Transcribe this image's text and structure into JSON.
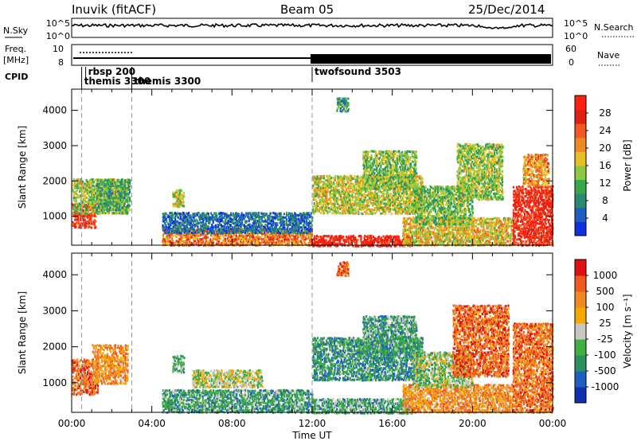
{
  "header": {
    "station": "Inuvik (fitACF)",
    "beam": "Beam 05",
    "date": "25/Dec/2014"
  },
  "strip": {
    "nsky_label": "N.Sky",
    "nsearch_label": "N.Search",
    "nsky_ticks": [
      "10^5",
      "10^0"
    ],
    "nsearch_ticks": [
      "10^5",
      "10^0"
    ],
    "freq_label_1": "Freq.",
    "freq_label_2": "[MHz]",
    "freq_ticks": [
      "10",
      "8"
    ],
    "nave_label": "Nave",
    "nave_ticks": [
      "60",
      "0"
    ],
    "cpid_label": "CPID",
    "cpid_programs": [
      {
        "name": "rbsp 200",
        "start_hour": 0.7,
        "row": 0
      },
      {
        "name": "themis 3300",
        "start_hour": 0.5,
        "row": 1
      },
      {
        "name": "themis 3300",
        "start_hour": 3.0,
        "row": 1
      },
      {
        "name": "twofsound 3503",
        "start_hour": 12.0,
        "row": 0
      }
    ]
  },
  "time_axis": {
    "label": "Time UT",
    "ticks": [
      "00:00",
      "04:00",
      "08:00",
      "12:00",
      "16:00",
      "20:00",
      "00:00"
    ],
    "range_hours": [
      0,
      24
    ]
  },
  "chart_data": [
    {
      "type": "heatmap",
      "name": "power",
      "ylabel": "Slant Range [km]",
      "yticks": [
        "1000",
        "2000",
        "3000",
        "4000"
      ],
      "ylim": [
        180,
        4600
      ],
      "xlim_hours": [
        0,
        24
      ],
      "colorbar": {
        "label": "Power [dB]",
        "ticks": [
          "4",
          "8",
          "12",
          "16",
          "20",
          "24",
          "28"
        ],
        "range": [
          0,
          30
        ],
        "colors": [
          "#1030e0",
          "#1f5fc4",
          "#2a8a70",
          "#36a84a",
          "#8cc840",
          "#e6c020",
          "#f08a20",
          "#f05a20",
          "#e02010",
          "#ff2010"
        ]
      },
      "echo_regions": [
        {
          "t0": 0.0,
          "t1": 1.2,
          "r0": 700,
          "r1": 1400,
          "level": 0.88
        },
        {
          "t0": 0.0,
          "t1": 2.8,
          "r0": 1100,
          "r1": 2100,
          "level": 0.45
        },
        {
          "t0": 1.2,
          "t1": 2.9,
          "r0": 1200,
          "r1": 2100,
          "level": 0.35
        },
        {
          "t0": 5.0,
          "t1": 5.6,
          "r0": 1300,
          "r1": 1800,
          "level": 0.5
        },
        {
          "t0": 4.5,
          "t1": 12.0,
          "r0": 200,
          "r1": 700,
          "level": 0.7
        },
        {
          "t0": 4.5,
          "t1": 12.0,
          "r0": 550,
          "r1": 1150,
          "level": 0.18
        },
        {
          "t0": 12.0,
          "t1": 17.0,
          "r0": 180,
          "r1": 500,
          "level": 0.93
        },
        {
          "t0": 12.0,
          "t1": 17.5,
          "r0": 1100,
          "r1": 2200,
          "level": 0.5
        },
        {
          "t0": 14.5,
          "t1": 17.2,
          "r0": 1800,
          "r1": 2900,
          "level": 0.42
        },
        {
          "t0": 13.2,
          "t1": 13.8,
          "r0": 4000,
          "r1": 4400,
          "level": 0.3
        },
        {
          "t0": 16.5,
          "t1": 22.0,
          "r0": 200,
          "r1": 1000,
          "level": 0.55
        },
        {
          "t0": 17.0,
          "t1": 20.0,
          "r0": 800,
          "r1": 1900,
          "level": 0.4
        },
        {
          "t0": 19.2,
          "t1": 21.5,
          "r0": 1500,
          "r1": 3100,
          "level": 0.45
        },
        {
          "t0": 22.0,
          "t1": 24.0,
          "r0": 200,
          "r1": 1900,
          "level": 0.9
        },
        {
          "t0": 22.5,
          "t1": 23.8,
          "r0": 1900,
          "r1": 2800,
          "level": 0.65
        }
      ]
    },
    {
      "type": "heatmap",
      "name": "velocity",
      "ylabel": "Slant Range [km]",
      "yticks": [
        "1000",
        "2000",
        "3000",
        "4000"
      ],
      "ylim": [
        180,
        4600
      ],
      "xlim_hours": [
        0,
        24
      ],
      "colorbar": {
        "label": "Velocity [m s⁻¹]",
        "ticks": [
          "1000",
          "500",
          "100",
          "25",
          "-25",
          "-100",
          "-500",
          "-1000"
        ],
        "range": [
          -1000,
          1000
        ],
        "colors": [
          "#e01010",
          "#f05a20",
          "#f08a20",
          "#f5a800",
          "#c8c8c0",
          "#40b040",
          "#2a9060",
          "#1f5fc4",
          "#1030b0"
        ]
      },
      "echo_regions": [
        {
          "t0": 0.0,
          "t1": 1.3,
          "r0": 700,
          "r1": 1700,
          "level": 0.2
        },
        {
          "t0": 1.0,
          "t1": 2.8,
          "r0": 1000,
          "r1": 2100,
          "level": 0.3
        },
        {
          "t0": 5.0,
          "t1": 5.6,
          "r0": 1300,
          "r1": 1800,
          "level": 0.62
        },
        {
          "t0": 4.5,
          "t1": 12.0,
          "r0": 200,
          "r1": 850,
          "level": 0.66
        },
        {
          "t0": 6.0,
          "t1": 9.5,
          "r0": 900,
          "r1": 1400,
          "level": 0.5
        },
        {
          "t0": 12.0,
          "t1": 17.0,
          "r0": 180,
          "r1": 600,
          "level": 0.64
        },
        {
          "t0": 12.0,
          "t1": 17.5,
          "r0": 1100,
          "r1": 2300,
          "level": 0.7
        },
        {
          "t0": 14.5,
          "t1": 17.2,
          "r0": 1800,
          "r1": 2900,
          "level": 0.66
        },
        {
          "t0": 13.2,
          "t1": 13.8,
          "r0": 4000,
          "r1": 4400,
          "level": 0.2
        },
        {
          "t0": 16.5,
          "t1": 22.0,
          "r0": 200,
          "r1": 1000,
          "level": 0.3
        },
        {
          "t0": 17.0,
          "t1": 20.0,
          "r0": 900,
          "r1": 1900,
          "level": 0.55
        },
        {
          "t0": 19.0,
          "t1": 21.8,
          "r0": 1200,
          "r1": 3200,
          "level": 0.2
        },
        {
          "t0": 22.0,
          "t1": 24.0,
          "r0": 200,
          "r1": 2700,
          "level": 0.22
        }
      ]
    }
  ]
}
